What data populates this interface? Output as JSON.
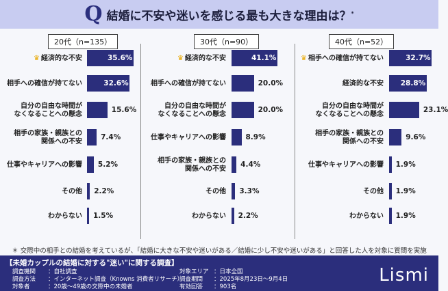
{
  "header": {
    "icon": "Q",
    "title": "結婚に不安や迷いを感じる最も大きな理由は？",
    "mark": "*"
  },
  "chart_data": [
    {
      "type": "bar",
      "orientation": "horizontal",
      "title": "20代（n=135）",
      "unit": "%",
      "categories": [
        "経済的な不安",
        "相手への確信が持てない",
        "自分の自由な時間が\nなくなることへの懸念",
        "相手の家族・親族との\n関係への不安",
        "仕事やキャリアへの影響",
        "その他",
        "わからない"
      ],
      "values": [
        35.6,
        32.6,
        15.6,
        7.4,
        5.2,
        2.2,
        1.5
      ],
      "labels": [
        "35.6%",
        "32.6%",
        "15.6%",
        "7.4%",
        "5.2%",
        "2.2%",
        "1.5%"
      ],
      "top_marker": "crown-icon",
      "bar_color": "#2b2e7c"
    },
    {
      "type": "bar",
      "orientation": "horizontal",
      "title": "30代（n=90）",
      "unit": "%",
      "categories": [
        "経済的な不安",
        "相手への確信が持てない",
        "自分の自由な時間が\nなくなることへの懸念",
        "仕事やキャリアへの影響",
        "相手の家族・親族との\n関係への不安",
        "その他",
        "わからない"
      ],
      "values": [
        41.1,
        20.0,
        20.0,
        8.9,
        4.4,
        3.3,
        2.2
      ],
      "labels": [
        "41.1%",
        "20.0%",
        "20.0%",
        "8.9%",
        "4.4%",
        "3.3%",
        "2.2%"
      ],
      "top_marker": "crown-icon",
      "bar_color": "#2b2e7c"
    },
    {
      "type": "bar",
      "orientation": "horizontal",
      "title": "40代（n=52）",
      "unit": "%",
      "categories": [
        "相手への確信が持てない",
        "経済的な不安",
        "自分の自由な時間が\nなくなることへの懸念",
        "相手の家族・親族との\n関係への不安",
        "仕事やキャリアへの影響",
        "その他",
        "わからない"
      ],
      "values": [
        32.7,
        28.8,
        23.1,
        9.6,
        1.9,
        1.9,
        1.9
      ],
      "labels": [
        "32.7%",
        "28.8%",
        "23.1%",
        "9.6%",
        "1.9%",
        "1.9%",
        "1.9%"
      ],
      "top_marker": "crown-icon",
      "bar_color": "#2b2e7c"
    }
  ],
  "note": "＊ 交際中の相手との結婚を考えているが、「結婚に大きな不安や迷いがある／結婚に少し不安や迷いがある」と回答した人を対象に質問を実施",
  "footer": {
    "title": "【未婚カップルの結婚に対する\"迷い\"に関する調査】",
    "items": [
      {
        "k": "調査機関",
        "v": "：自社調査"
      },
      {
        "k": "調査方法",
        "v": "：インターネット調査（Knowns 消費者リサーチ）"
      },
      {
        "k": "対象者",
        "v": "：20歳〜49歳の交際中の未婚者"
      },
      {
        "k": "対象エリア",
        "v": "：日本全国"
      },
      {
        "k": "調査期間",
        "v": "：2025年8月23日〜9月4日"
      },
      {
        "k": "有効回答",
        "v": "：903名"
      }
    ],
    "logo": "Lismi"
  }
}
